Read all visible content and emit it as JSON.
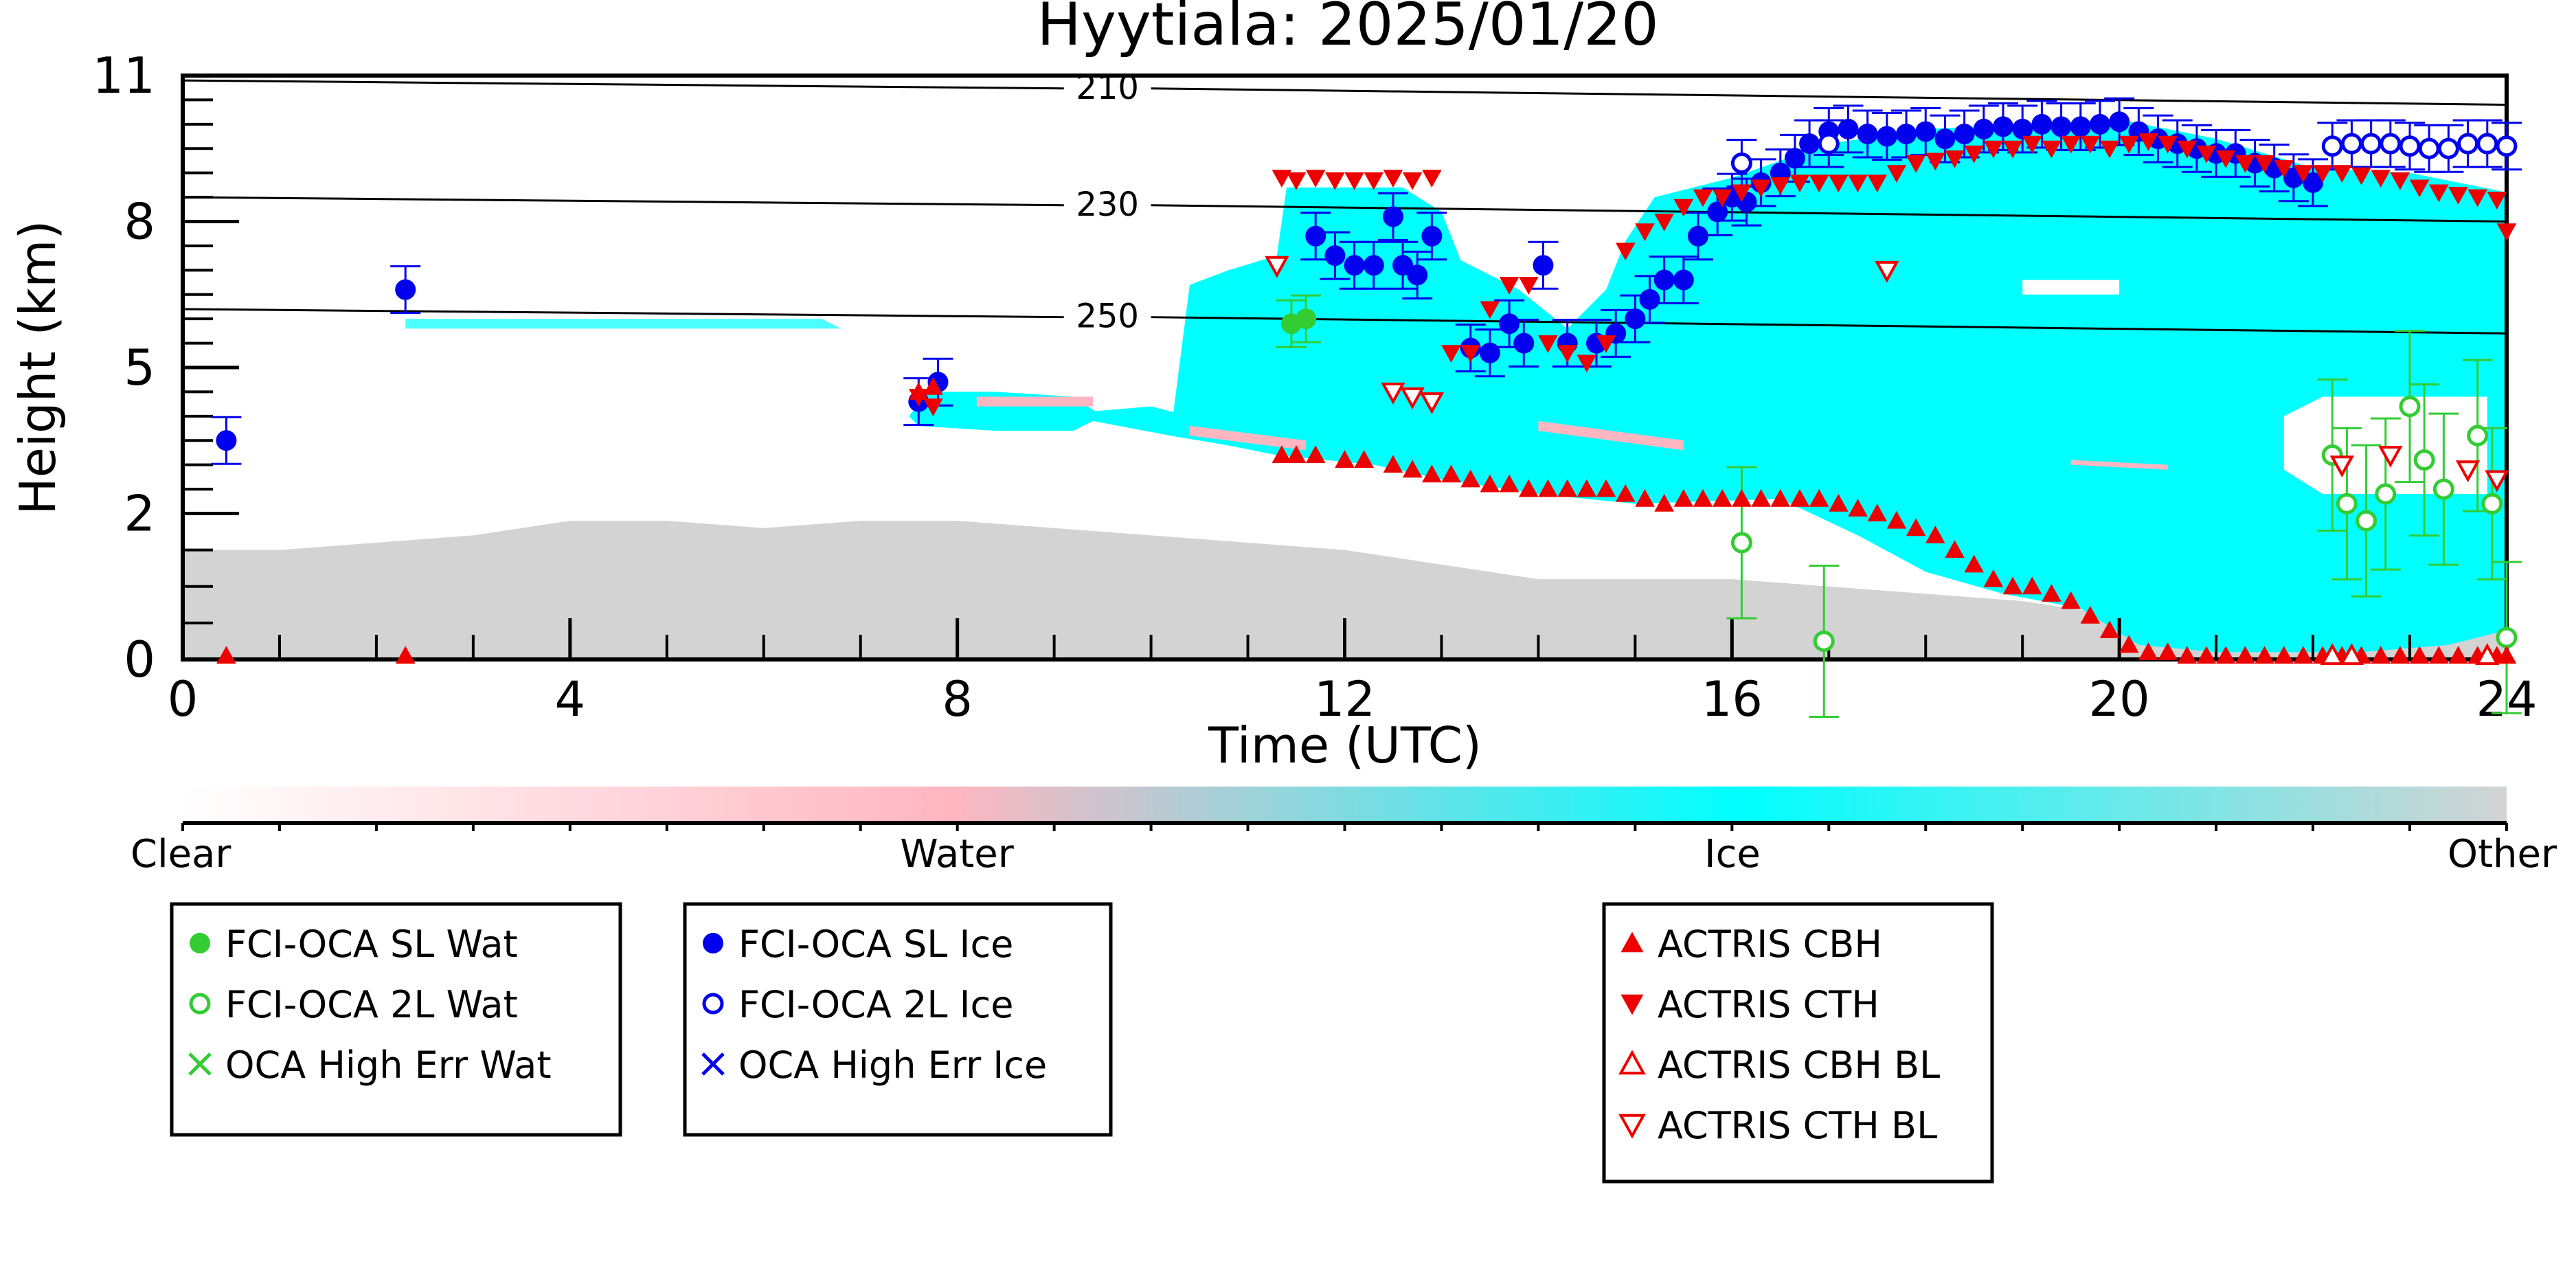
{
  "chart_data": {
    "type": "scatter",
    "title": "Hyytiala: 2025/01/20",
    "xlabel": "Time (UTC)",
    "ylabel": "Height (km)",
    "xlim": [
      0,
      24
    ],
    "ylim": [
      0,
      11
    ],
    "x_ticks": [
      0,
      4,
      8,
      12,
      16,
      20,
      24
    ],
    "y_ticks": [
      0,
      2,
      5,
      8,
      11
    ],
    "y_tick_labels": [
      "0",
      "2",
      "5",
      "8",
      "11"
    ],
    "background": "cloud classification curtain (Clear / Water / Ice / Other)",
    "colorbar": {
      "labels": [
        "Clear",
        "Water",
        "Ice",
        "Other"
      ],
      "colors": [
        "#ffffff",
        "#ffb6c1",
        "#00ffff",
        "#d3d3d3"
      ]
    },
    "isotherms": [
      {
        "label": "210",
        "y": [
          10.9,
          10.4
        ]
      },
      {
        "label": "230",
        "y": [
          8.5,
          8.0
        ]
      },
      {
        "label": "250",
        "y": [
          6.2,
          5.7
        ]
      }
    ],
    "legends": [
      {
        "name": "legend-oca-water",
        "entries": [
          {
            "label": "FCI-OCA SL Wat",
            "marker": "filled-circle",
            "color": "#33cc33"
          },
          {
            "label": "FCI-OCA 2L Wat",
            "marker": "open-circle",
            "color": "#33cc33"
          },
          {
            "label": "OCA High Err Wat",
            "marker": "cross",
            "color": "#33cc33"
          }
        ]
      },
      {
        "name": "legend-oca-ice",
        "entries": [
          {
            "label": "FCI-OCA SL Ice",
            "marker": "filled-circle",
            "color": "#0000ee"
          },
          {
            "label": "FCI-OCA 2L Ice",
            "marker": "open-circle",
            "color": "#0000ee"
          },
          {
            "label": "OCA High Err Ice",
            "marker": "cross",
            "color": "#0000ee"
          }
        ]
      },
      {
        "name": "legend-actris",
        "entries": [
          {
            "label": "ACTRIS CBH",
            "marker": "triangle-up-filled",
            "color": "#ee0000"
          },
          {
            "label": "ACTRIS CTH",
            "marker": "triangle-down-filled",
            "color": "#ee0000"
          },
          {
            "label": "ACTRIS CBH BL",
            "marker": "triangle-up-open",
            "color": "#ee0000"
          },
          {
            "label": "ACTRIS CTH BL",
            "marker": "triangle-down-open",
            "color": "#ee0000"
          }
        ]
      }
    ],
    "series": [
      {
        "name": "FCI-OCA SL Ice",
        "marker": "filled-circle",
        "color": "#0000ee",
        "x": [
          0.45,
          2.3,
          7.6,
          7.8,
          11.7,
          11.9,
          12.1,
          12.3,
          12.5,
          12.6,
          12.75,
          12.9,
          13.3,
          13.5,
          13.7,
          13.85,
          14.05,
          14.3,
          14.6,
          14.8,
          15.0,
          15.15,
          15.3,
          15.5,
          15.65,
          15.85,
          16.0,
          16.15,
          16.3,
          16.5,
          16.65,
          16.8,
          17.0,
          17.2,
          17.4,
          17.6,
          17.8,
          18.0,
          18.2,
          18.4,
          18.6,
          18.8,
          19.0,
          19.2,
          19.4,
          19.6,
          19.8,
          20.0,
          20.2,
          20.4,
          20.6,
          20.8,
          21.0,
          21.2,
          21.4,
          21.6,
          21.8,
          22.0
        ],
        "y": [
          3.5,
          6.6,
          4.3,
          4.7,
          7.7,
          7.3,
          7.1,
          7.1,
          8.1,
          7.1,
          6.9,
          7.7,
          5.4,
          5.3,
          5.9,
          5.5,
          7.1,
          5.5,
          5.5,
          5.7,
          6.0,
          6.4,
          6.8,
          6.8,
          7.7,
          8.2,
          8.5,
          8.4,
          8.8,
          9.0,
          9.3,
          9.6,
          9.85,
          9.9,
          9.8,
          9.75,
          9.8,
          9.85,
          9.7,
          9.8,
          9.9,
          9.95,
          9.9,
          10.0,
          9.95,
          9.95,
          10.0,
          10.05,
          9.85,
          9.7,
          9.6,
          9.5,
          9.4,
          9.4,
          9.2,
          9.1,
          8.9,
          8.8
        ]
      },
      {
        "name": "FCI-OCA 2L Ice",
        "marker": "open-circle",
        "color": "#0000ee",
        "x": [
          16.1,
          17.0,
          22.2,
          22.4,
          22.6,
          22.8,
          23.0,
          23.2,
          23.4,
          23.6,
          23.8,
          24.0
        ],
        "y": [
          9.2,
          9.6,
          9.55,
          9.6,
          9.6,
          9.6,
          9.55,
          9.5,
          9.5,
          9.6,
          9.6,
          9.55
        ]
      },
      {
        "name": "FCI-OCA SL Wat",
        "marker": "filled-circle",
        "color": "#33cc33",
        "x": [
          11.45,
          11.6
        ],
        "y": [
          5.9,
          6.0
        ]
      },
      {
        "name": "FCI-OCA 2L Wat",
        "marker": "open-circle",
        "color": "#33cc33",
        "x": [
          16.1,
          16.95,
          22.2,
          22.35,
          22.55,
          22.75,
          23.0,
          23.15,
          23.35,
          23.7,
          23.85,
          24.0
        ],
        "y": [
          1.6,
          0.25,
          3.2,
          2.2,
          1.9,
          2.4,
          4.2,
          3.1,
          2.5,
          3.6,
          2.2,
          0.3
        ]
      },
      {
        "name": "ACTRIS CBH",
        "marker": "triangle-up-filled",
        "color": "#ee0000",
        "x": [
          0.45,
          2.3,
          7.6,
          7.75,
          11.35,
          11.5,
          11.7,
          12.0,
          12.2,
          12.5,
          12.7,
          12.9,
          13.1,
          13.3,
          13.5,
          13.7,
          13.9,
          14.1,
          14.3,
          14.5,
          14.7,
          14.9,
          15.1,
          15.3,
          15.5,
          15.7,
          15.9,
          16.1,
          16.3,
          16.5,
          16.7,
          16.9,
          17.1,
          17.3,
          17.5,
          17.7,
          17.9,
          18.1,
          18.3,
          18.5,
          18.7,
          18.9,
          19.1,
          19.3,
          19.5,
          19.7,
          19.9,
          20.1,
          20.3,
          20.5,
          20.7,
          20.9,
          21.1,
          21.3,
          21.5,
          21.7,
          21.9,
          22.1,
          22.3,
          22.5,
          22.7,
          22.9,
          23.1,
          23.3,
          23.5,
          23.7,
          23.9,
          24.0
        ],
        "y": [
          0.05,
          0.05,
          4.5,
          4.6,
          3.2,
          3.2,
          3.2,
          3.1,
          3.1,
          3.0,
          2.9,
          2.8,
          2.8,
          2.7,
          2.6,
          2.6,
          2.5,
          2.5,
          2.5,
          2.5,
          2.5,
          2.4,
          2.3,
          2.2,
          2.3,
          2.3,
          2.3,
          2.3,
          2.3,
          2.3,
          2.3,
          2.3,
          2.2,
          2.1,
          2.0,
          1.9,
          1.8,
          1.7,
          1.5,
          1.3,
          1.1,
          1.0,
          1.0,
          0.9,
          0.8,
          0.6,
          0.4,
          0.2,
          0.1,
          0.1,
          0.05,
          0.05,
          0.05,
          0.05,
          0.05,
          0.05,
          0.05,
          0.05,
          0.05,
          0.05,
          0.05,
          0.05,
          0.05,
          0.05,
          0.05,
          0.05,
          0.05,
          0.05
        ]
      },
      {
        "name": "ACTRIS CTH",
        "marker": "triangle-down-filled",
        "color": "#ee0000",
        "x": [
          7.6,
          7.75,
          11.35,
          11.5,
          11.7,
          11.9,
          12.1,
          12.3,
          12.5,
          12.7,
          12.9,
          13.1,
          13.3,
          13.5,
          13.7,
          13.9,
          14.1,
          14.3,
          14.5,
          14.7,
          14.9,
          15.1,
          15.3,
          15.5,
          15.7,
          15.9,
          16.1,
          16.3,
          16.5,
          16.7,
          16.9,
          17.1,
          17.3,
          17.5,
          17.7,
          17.9,
          18.1,
          18.3,
          18.5,
          18.7,
          18.9,
          19.1,
          19.3,
          19.5,
          19.7,
          19.9,
          20.1,
          20.3,
          20.5,
          20.7,
          20.9,
          21.1,
          21.3,
          21.5,
          21.7,
          21.9,
          22.1,
          22.3,
          22.5,
          22.7,
          22.9,
          23.1,
          23.3,
          23.5,
          23.7,
          23.9,
          24.0
        ],
        "y": [
          4.4,
          4.2,
          8.9,
          8.85,
          8.9,
          8.85,
          8.85,
          8.85,
          8.9,
          8.85,
          8.9,
          5.3,
          5.3,
          6.2,
          6.7,
          6.7,
          5.5,
          5.3,
          5.1,
          5.5,
          7.4,
          7.8,
          8.0,
          8.3,
          8.5,
          8.5,
          8.6,
          8.7,
          8.75,
          8.8,
          8.8,
          8.8,
          8.8,
          8.8,
          9.0,
          9.2,
          9.25,
          9.3,
          9.4,
          9.5,
          9.5,
          9.6,
          9.5,
          9.6,
          9.6,
          9.5,
          9.6,
          9.65,
          9.6,
          9.5,
          9.4,
          9.3,
          9.2,
          9.2,
          9.1,
          9.0,
          9.0,
          9.0,
          8.95,
          8.9,
          8.85,
          8.7,
          8.6,
          8.55,
          8.5,
          8.45,
          7.8
        ]
      },
      {
        "name": "ACTRIS CBH BL",
        "marker": "triangle-up-open",
        "color": "#ee0000",
        "x": [
          22.2,
          22.4,
          23.8
        ],
        "y": [
          0.05,
          0.05,
          0.05
        ]
      },
      {
        "name": "ACTRIS CTH BL",
        "marker": "triangle-down-open",
        "color": "#ee0000",
        "x": [
          11.3,
          12.5,
          12.7,
          12.9,
          17.6,
          22.3,
          22.8,
          23.6,
          23.9
        ],
        "y": [
          7.1,
          4.5,
          4.4,
          4.3,
          7.0,
          3.0,
          3.2,
          2.9,
          2.7
        ]
      }
    ]
  }
}
